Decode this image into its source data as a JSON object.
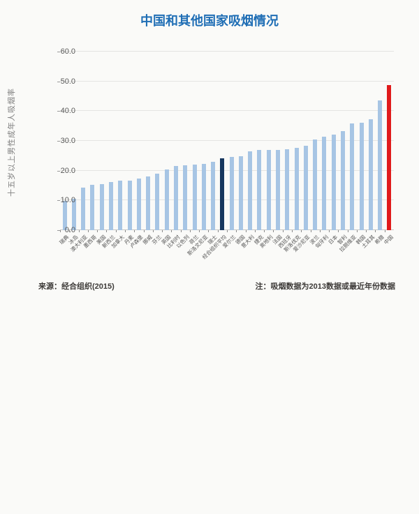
{
  "title": "中国和其他国家吸烟情况",
  "footer": {
    "source_note": "来源：经合组织(2015)",
    "data_note": "注：吸烟数据为2013数据或最近年份数据"
  },
  "colors": {
    "title_blue": "#1f6eb5",
    "bar_default": "#a7c5e4",
    "bar_oecd_average": "#17375e",
    "bar_china": "#e01a1b",
    "axis_text": "#595959",
    "grid": "#e4e4e2"
  },
  "chart_data": {
    "type": "bar",
    "title": "中国和其他国家吸烟情况",
    "xlabel": "",
    "ylabel": "十五岁以上男性成年人吸烟率",
    "ylim": [
      0,
      60
    ],
    "ytick_labels": [
      "0.0",
      "10.0",
      "20.0",
      "30.0",
      "40.0",
      "50.0",
      "60.0"
    ],
    "grid": true,
    "legend_position": "none",
    "categories": [
      "瑞典",
      "冰岛",
      "澳大利亚",
      "墨西哥",
      "美国",
      "新西兰",
      "加拿大",
      "丹麦",
      "卢森堡",
      "挪威",
      "芬兰",
      "英国",
      "比利时",
      "以色列",
      "荷兰",
      "斯洛文尼亚",
      "瑞士",
      "经合组织平均",
      "爱尔兰",
      "德国",
      "意大利",
      "捷克",
      "奥地利",
      "法国",
      "西班牙",
      "斯洛伐克",
      "爱沙尼亚",
      "波兰",
      "匈牙利",
      "日本",
      "智利",
      "拉脱维亚",
      "韩国",
      "土耳其",
      "希腊",
      "中国"
    ],
    "values": [
      9.8,
      10.5,
      14.2,
      15.2,
      15.5,
      16.1,
      16.6,
      16.7,
      17.3,
      18.0,
      18.9,
      20.4,
      21.5,
      21.9,
      22.0,
      22.3,
      23.0,
      24.2,
      24.5,
      24.8,
      26.5,
      26.9,
      27.0,
      27.0,
      27.1,
      27.7,
      28.4,
      30.5,
      31.5,
      32.0,
      33.4,
      35.9,
      36.0,
      37.3,
      43.7,
      48.8
    ],
    "highlight_dark_category": "经合组织平均",
    "highlight_red_category": "中国"
  }
}
